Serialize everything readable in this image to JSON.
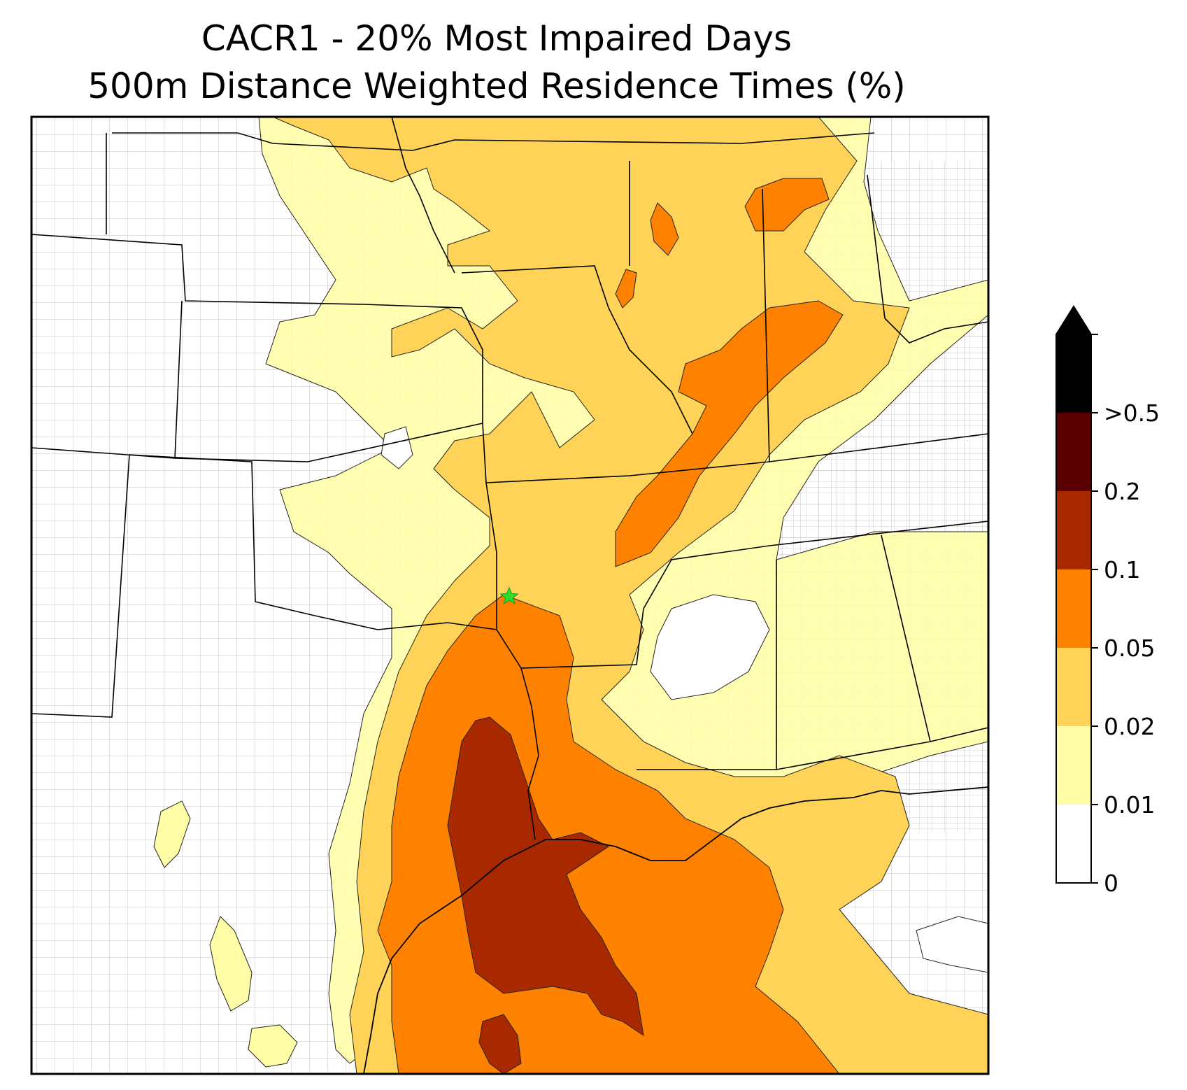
{
  "title": {
    "line1": "CACR1 - 20% Most Impaired Days",
    "line2": "500m Distance Weighted Residence Times (%)"
  },
  "site_marker": {
    "symbol": "star",
    "color": "#2bdc2b"
  },
  "colorbar": {
    "extend": "max",
    "levels": [
      {
        "label": "0",
        "value": 0,
        "color": "#ffffff"
      },
      {
        "label": "0.01",
        "value": 0.01,
        "color": "#fffea6"
      },
      {
        "label": "0.02",
        "value": 0.02,
        "color": "#fed357"
      },
      {
        "label": "0.05",
        "value": 0.05,
        "color": "#fe8200"
      },
      {
        "label": "0.1",
        "value": 0.1,
        "color": "#a82900"
      },
      {
        "label": "0.2",
        "value": 0.2,
        "color": "#5a0000"
      },
      {
        "label": ">0.5",
        "value": 0.5,
        "color": "#000000"
      }
    ]
  }
}
